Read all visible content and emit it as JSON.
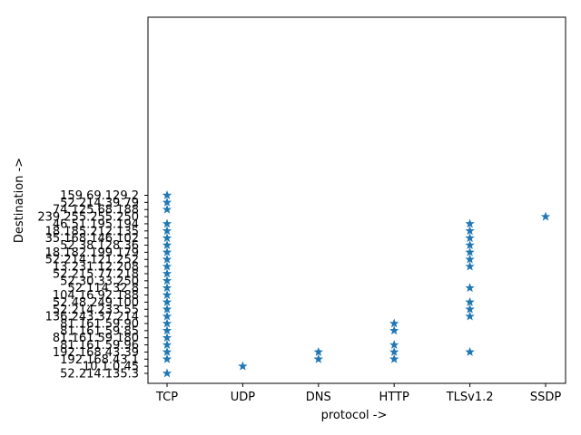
{
  "chart_data": {
    "type": "scatter",
    "title": "",
    "xlabel": "protocol ->",
    "ylabel": "Destination ->",
    "marker": "star",
    "color": "#1f77b4",
    "grid": false,
    "legend": false,
    "x_categories": [
      "TCP",
      "UDP",
      "DNS",
      "HTTP",
      "TLSv1.2",
      "SSDP"
    ],
    "y_categories": [
      "52.214.135.3",
      "10.1.0.45",
      "192.168.43.1",
      "192.168.43.39",
      "81.161.59.96",
      "81.161.59.180",
      "81.161.59.85",
      "81.161.59.90",
      "136.243.37.214",
      "52.214.233.55",
      "52.48.249.100",
      "104.16.92.188",
      "52.114.32.8",
      "52.30.33.250",
      "52.215.77.218",
      "13.231.12.208",
      "52.214.121.252",
      "18.182.199.179",
      "52.38.128.36",
      "35.168.146.102",
      "18.185.212.135",
      "46.51.195.194",
      "239.255.255.250",
      "74.125.68.188",
      "52.214.39.79",
      "159.69.129.2"
    ],
    "points": [
      {
        "x": "TCP",
        "y": "52.214.135.3"
      },
      {
        "x": "TCP",
        "y": "192.168.43.1"
      },
      {
        "x": "TCP",
        "y": "192.168.43.39"
      },
      {
        "x": "TCP",
        "y": "81.161.59.96"
      },
      {
        "x": "TCP",
        "y": "81.161.59.180"
      },
      {
        "x": "TCP",
        "y": "81.161.59.85"
      },
      {
        "x": "TCP",
        "y": "81.161.59.90"
      },
      {
        "x": "TCP",
        "y": "136.243.37.214"
      },
      {
        "x": "TCP",
        "y": "52.214.233.55"
      },
      {
        "x": "TCP",
        "y": "52.48.249.100"
      },
      {
        "x": "TCP",
        "y": "104.16.92.188"
      },
      {
        "x": "TCP",
        "y": "52.114.32.8"
      },
      {
        "x": "TCP",
        "y": "52.30.33.250"
      },
      {
        "x": "TCP",
        "y": "52.215.77.218"
      },
      {
        "x": "TCP",
        "y": "13.231.12.208"
      },
      {
        "x": "TCP",
        "y": "52.214.121.252"
      },
      {
        "x": "TCP",
        "y": "18.182.199.179"
      },
      {
        "x": "TCP",
        "y": "52.38.128.36"
      },
      {
        "x": "TCP",
        "y": "35.168.146.102"
      },
      {
        "x": "TCP",
        "y": "18.185.212.135"
      },
      {
        "x": "TCP",
        "y": "46.51.195.194"
      },
      {
        "x": "TCP",
        "y": "74.125.68.188"
      },
      {
        "x": "TCP",
        "y": "52.214.39.79"
      },
      {
        "x": "TCP",
        "y": "159.69.129.2"
      },
      {
        "x": "UDP",
        "y": "10.1.0.45"
      },
      {
        "x": "DNS",
        "y": "192.168.43.1"
      },
      {
        "x": "DNS",
        "y": "192.168.43.39"
      },
      {
        "x": "HTTP",
        "y": "192.168.43.1"
      },
      {
        "x": "HTTP",
        "y": "192.168.43.39"
      },
      {
        "x": "HTTP",
        "y": "81.161.59.96"
      },
      {
        "x": "HTTP",
        "y": "81.161.59.85"
      },
      {
        "x": "HTTP",
        "y": "81.161.59.90"
      },
      {
        "x": "TLSv1.2",
        "y": "192.168.43.39"
      },
      {
        "x": "TLSv1.2",
        "y": "136.243.37.214"
      },
      {
        "x": "TLSv1.2",
        "y": "52.214.233.55"
      },
      {
        "x": "TLSv1.2",
        "y": "52.48.249.100"
      },
      {
        "x": "TLSv1.2",
        "y": "52.114.32.8"
      },
      {
        "x": "TLSv1.2",
        "y": "13.231.12.208"
      },
      {
        "x": "TLSv1.2",
        "y": "52.214.121.252"
      },
      {
        "x": "TLSv1.2",
        "y": "18.182.199.179"
      },
      {
        "x": "TLSv1.2",
        "y": "52.38.128.36"
      },
      {
        "x": "TLSv1.2",
        "y": "35.168.146.102"
      },
      {
        "x": "TLSv1.2",
        "y": "18.185.212.135"
      },
      {
        "x": "TLSv1.2",
        "y": "46.51.195.194"
      },
      {
        "x": "SSDP",
        "y": "239.255.255.250"
      }
    ]
  }
}
